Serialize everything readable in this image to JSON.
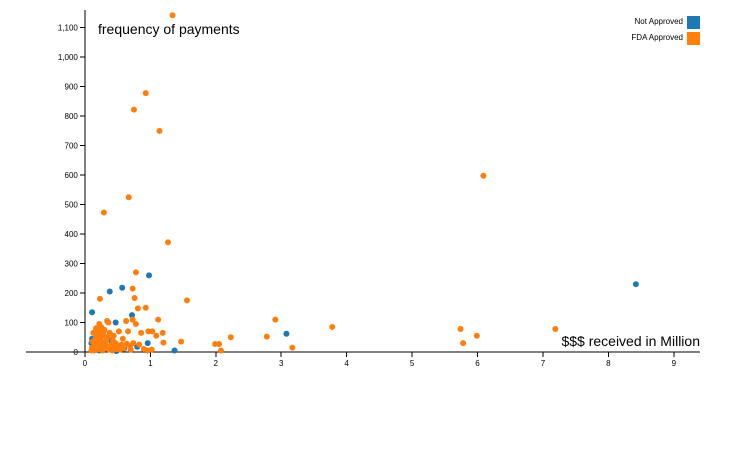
{
  "chart_data": {
    "type": "scatter",
    "title": "frequency of payments",
    "xlabel": "$$$ received in Million",
    "ylabel": "",
    "xlim": [
      -0.9,
      9.4
    ],
    "ylim": [
      0,
      1160
    ],
    "xticks": [
      0,
      1,
      2,
      3,
      4,
      5,
      6,
      7,
      8,
      9
    ],
    "yticks": [
      0,
      100,
      200,
      300,
      400,
      500,
      600,
      700,
      800,
      900,
      1000,
      1100
    ],
    "ytick_labels": [
      "0",
      "100",
      "200",
      "300",
      "400",
      "500",
      "600",
      "700",
      "800",
      "900",
      "1,000",
      "1,100"
    ],
    "grid": false,
    "legend": "top-right",
    "series": [
      {
        "name": "Not Approved",
        "color": "#1f77b4",
        "points": [
          [
            8.42,
            230
          ],
          [
            3.08,
            62
          ],
          [
            1.37,
            5
          ],
          [
            0.98,
            260
          ],
          [
            0.96,
            30
          ],
          [
            0.57,
            218
          ],
          [
            0.38,
            205
          ],
          [
            0.11,
            135
          ],
          [
            0.72,
            125
          ],
          [
            0.47,
            100
          ],
          [
            0.8,
            18
          ],
          [
            0.11,
            45
          ],
          [
            0.1,
            30
          ],
          [
            0.18,
            15
          ],
          [
            0.22,
            5
          ],
          [
            0.3,
            10
          ],
          [
            0.48,
            3
          ],
          [
            0.15,
            8
          ],
          [
            0.27,
            25
          ],
          [
            0.6,
            12
          ],
          [
            0.25,
            60
          ],
          [
            0.39,
            40
          ]
        ]
      },
      {
        "name": "FDA Approved",
        "color": "#ff7f0e",
        "points": [
          [
            1.34,
            1142
          ],
          [
            0.93,
            878
          ],
          [
            0.75,
            822
          ],
          [
            1.14,
            750
          ],
          [
            0.67,
            525
          ],
          [
            0.29,
            473
          ],
          [
            1.27,
            372
          ],
          [
            6.09,
            598
          ],
          [
            0.78,
            270
          ],
          [
            0.73,
            215
          ],
          [
            0.76,
            183
          ],
          [
            1.56,
            175
          ],
          [
            0.23,
            180
          ],
          [
            0.81,
            148
          ],
          [
            0.93,
            150
          ],
          [
            1.12,
            110
          ],
          [
            2.91,
            110
          ],
          [
            3.78,
            85
          ],
          [
            5.74,
            78
          ],
          [
            5.99,
            55
          ],
          [
            5.78,
            30
          ],
          [
            7.19,
            78
          ],
          [
            2.78,
            52
          ],
          [
            2.23,
            50
          ],
          [
            3.17,
            15
          ],
          [
            2.05,
            27
          ],
          [
            1.99,
            27
          ],
          [
            2.08,
            5
          ],
          [
            1.47,
            35
          ],
          [
            1.19,
            65
          ],
          [
            1.2,
            32
          ],
          [
            1.03,
            70
          ],
          [
            0.97,
            70
          ],
          [
            0.86,
            65
          ],
          [
            0.73,
            110
          ],
          [
            0.78,
            95
          ],
          [
            0.66,
            70
          ],
          [
            0.63,
            105
          ],
          [
            0.58,
            45
          ],
          [
            0.56,
            25
          ],
          [
            0.52,
            70
          ],
          [
            0.49,
            10
          ],
          [
            0.47,
            30
          ],
          [
            0.44,
            55
          ],
          [
            0.42,
            5
          ],
          [
            0.41,
            25
          ],
          [
            0.38,
            65
          ],
          [
            0.36,
            100
          ],
          [
            0.34,
            105
          ],
          [
            0.33,
            40
          ],
          [
            0.32,
            15
          ],
          [
            0.3,
            75
          ],
          [
            0.29,
            55
          ],
          [
            0.28,
            30
          ],
          [
            0.27,
            5
          ],
          [
            0.25,
            85
          ],
          [
            0.23,
            50
          ],
          [
            0.22,
            20
          ],
          [
            0.21,
            70
          ],
          [
            0.19,
            35
          ],
          [
            0.18,
            60
          ],
          [
            0.17,
            15
          ],
          [
            0.16,
            45
          ],
          [
            0.15,
            25
          ],
          [
            0.14,
            5
          ],
          [
            0.13,
            65
          ],
          [
            0.12,
            35
          ],
          [
            0.11,
            15
          ],
          [
            0.1,
            5
          ],
          [
            0.2,
            10
          ],
          [
            0.24,
            40
          ],
          [
            0.26,
            18
          ],
          [
            0.31,
            28
          ],
          [
            0.35,
            20
          ],
          [
            0.37,
            8
          ],
          [
            0.4,
            12
          ],
          [
            0.43,
            38
          ],
          [
            0.46,
            15
          ],
          [
            0.5,
            22
          ],
          [
            0.54,
            8
          ],
          [
            0.59,
            12
          ],
          [
            0.64,
            28
          ],
          [
            0.69,
            20
          ],
          [
            0.7,
            8
          ],
          [
            0.74,
            30
          ],
          [
            0.83,
            25
          ],
          [
            0.9,
            10
          ],
          [
            0.96,
            5
          ],
          [
            1.02,
            8
          ],
          [
            1.09,
            55
          ],
          [
            0.35,
            50
          ],
          [
            0.22,
            95
          ],
          [
            0.28,
            65
          ],
          [
            0.17,
            80
          ]
        ]
      }
    ]
  }
}
